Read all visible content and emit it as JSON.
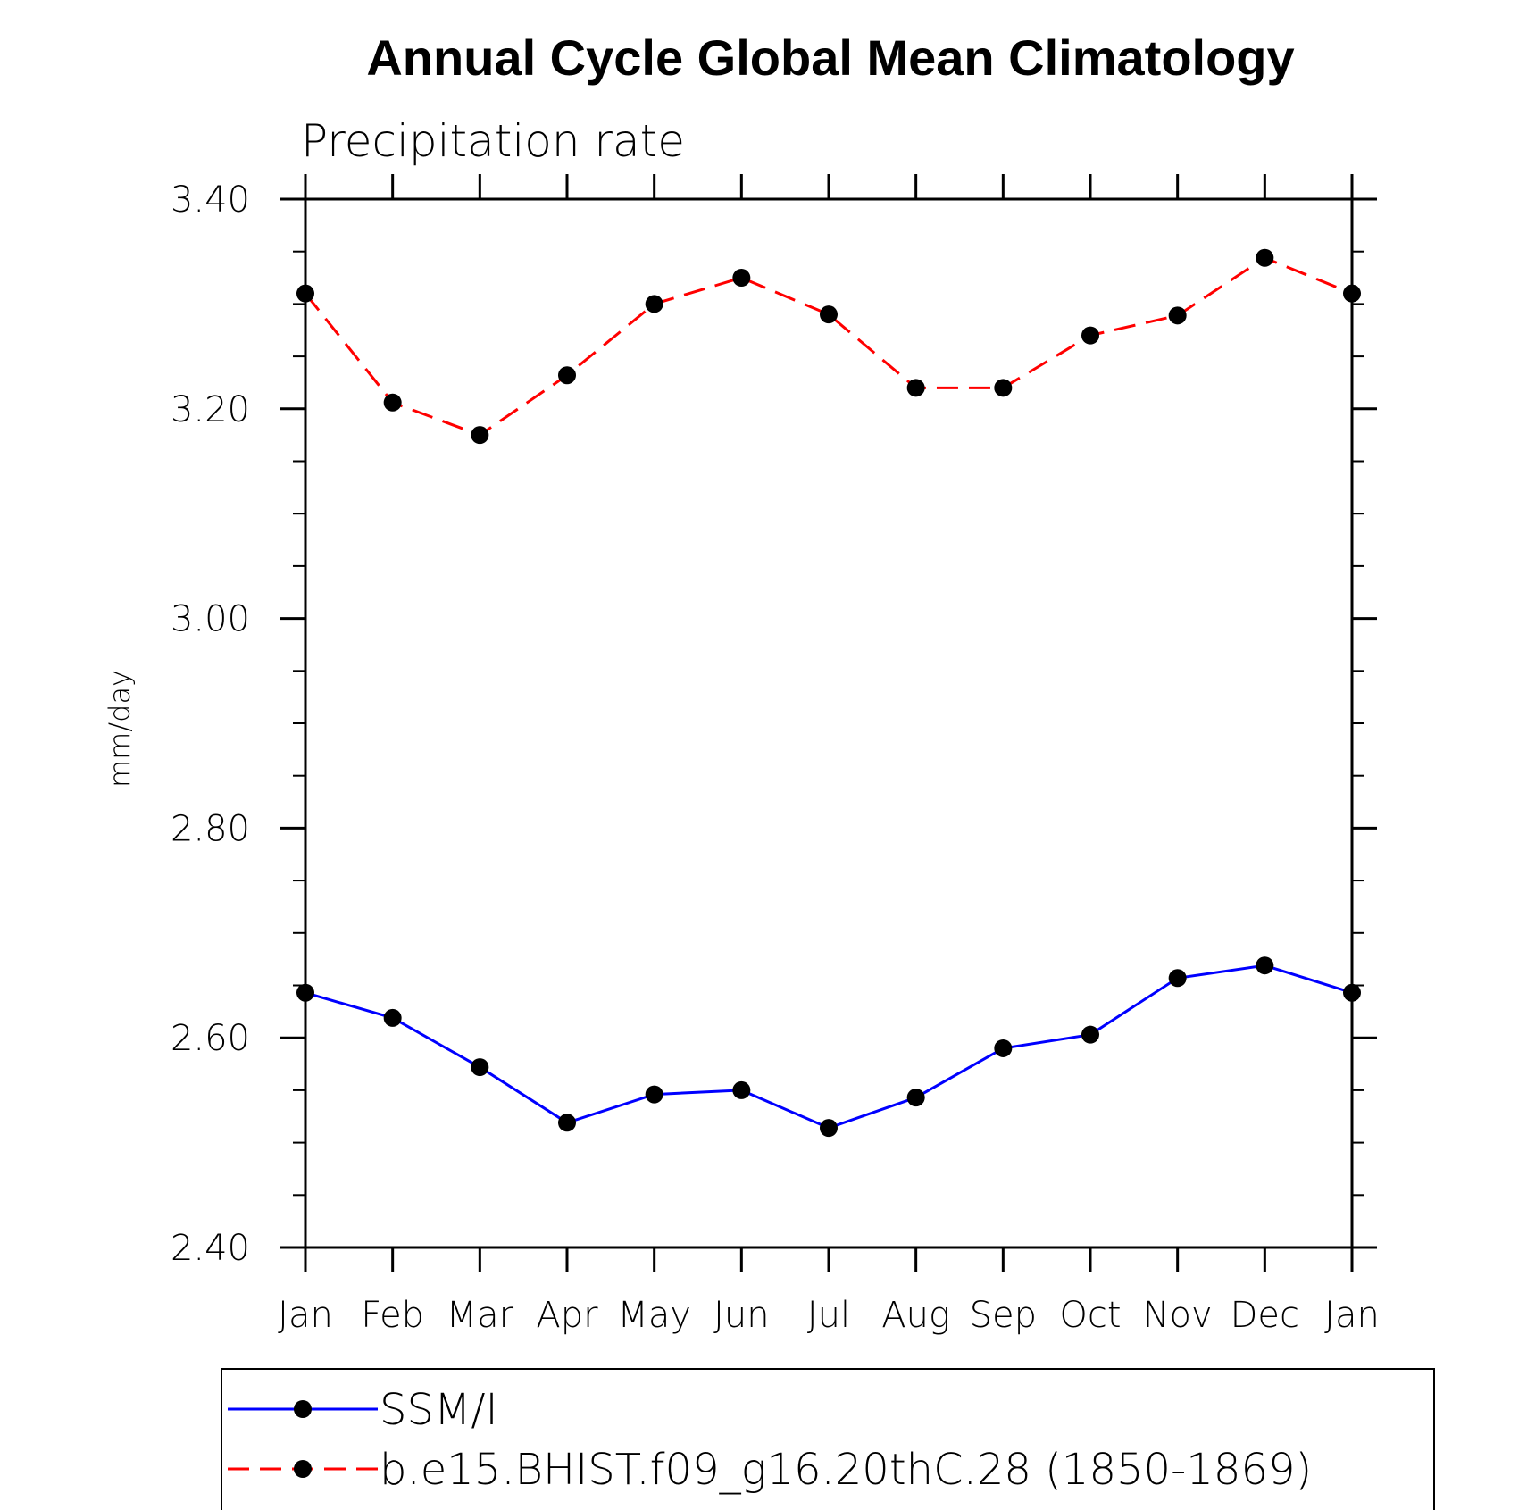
{
  "chart_data": {
    "type": "line",
    "title": "Annual Cycle Global Mean Climatology",
    "subtitle": "Precipitation rate",
    "xlabel": "",
    "ylabel": "mm/day",
    "categories": [
      "Jan",
      "Feb",
      "Mar",
      "Apr",
      "May",
      "Jun",
      "Jul",
      "Aug",
      "Sep",
      "Oct",
      "Nov",
      "Dec",
      "Jan"
    ],
    "ylim": [
      2.4,
      3.4
    ],
    "yticks": [
      "2.40",
      "2.60",
      "2.80",
      "3.00",
      "3.20",
      "3.40"
    ],
    "grid": false,
    "legend_position": "bottom",
    "series": [
      {
        "name": "SSM/I",
        "color": "#0000ff",
        "line_style": "solid",
        "marker": "filled-circle",
        "values": [
          2.643,
          2.619,
          2.572,
          2.519,
          2.546,
          2.55,
          2.514,
          2.543,
          2.59,
          2.603,
          2.657,
          2.669,
          2.643
        ]
      },
      {
        "name": "b.e15.BHIST.f09_g16.20thC.28 (1850-1869)",
        "color": "#ff0000",
        "line_style": "dashed",
        "marker": "filled-circle",
        "values": [
          3.31,
          3.206,
          3.175,
          3.232,
          3.3,
          3.325,
          3.29,
          3.22,
          3.22,
          3.27,
          3.289,
          3.344,
          3.31
        ]
      }
    ]
  }
}
